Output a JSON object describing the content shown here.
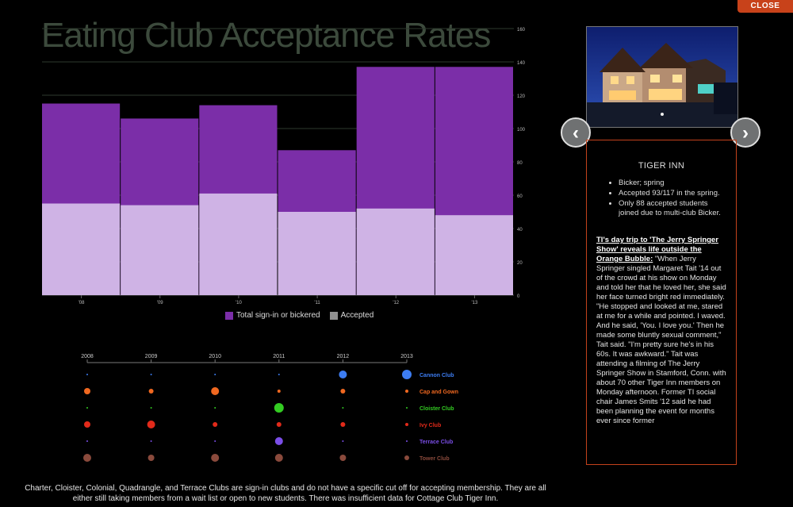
{
  "close_label": "CLOSE",
  "title": "Eating Club Acceptance Rates",
  "legend": [
    {
      "label": "Total sign-in or bickered",
      "color": "#7b2ea8"
    },
    {
      "label": "Accepted",
      "color": "#909090"
    }
  ],
  "chart_data": [
    {
      "type": "bar",
      "title": "Eating Club Acceptance Rates",
      "categories": [
        "'08",
        "'09",
        "'10",
        "'11",
        "'12",
        "'13"
      ],
      "series": [
        {
          "name": "Total sign-in or bickered",
          "values": [
            115,
            106,
            114,
            87,
            137,
            137
          ],
          "color": "#7b2ea8"
        },
        {
          "name": "Accepted",
          "values": [
            55,
            54,
            61,
            50,
            52,
            48
          ],
          "color": "#cfb3e5"
        }
      ],
      "yticks": [
        0,
        20,
        40,
        60,
        80,
        100,
        120,
        140,
        160
      ],
      "ylim": [
        0,
        160
      ],
      "grid": true,
      "legend_position": "bottom"
    },
    {
      "type": "scatter",
      "x_labels": [
        "2008",
        "2009",
        "2010",
        "2011",
        "2012",
        "2013"
      ],
      "clubs": [
        {
          "name": "Cannon Club",
          "color": "#3d7df2",
          "sizes": [
            1,
            1,
            1,
            1,
            5,
            6
          ]
        },
        {
          "name": "Cap and Gown",
          "color": "#f06820",
          "sizes": [
            4,
            3,
            5,
            2,
            3,
            2
          ]
        },
        {
          "name": "Cloister Club",
          "color": "#33cc22",
          "sizes": [
            1,
            1,
            1,
            6,
            1,
            1
          ]
        },
        {
          "name": "Ivy Club",
          "color": "#e22a1a",
          "sizes": [
            4,
            5,
            3,
            3,
            3,
            2
          ]
        },
        {
          "name": "Terrace Club",
          "color": "#7b4ee8",
          "sizes": [
            1,
            1,
            1,
            5,
            1,
            1
          ]
        },
        {
          "name": "Tower Club",
          "color": "#8a4a3c",
          "sizes": [
            5,
            4,
            5,
            5,
            4,
            3
          ]
        }
      ]
    }
  ],
  "footnote": "Charter, Cloister, Colonial, Quadrangle, and Terrace Clubs are sign-in clubs and do not have a specific cut off for accepting membership. They are all either still taking members from a wait list or open to new students. There was insufficient data for Cottage Club Tiger Inn.",
  "panel": {
    "title": "TIGER INN",
    "bullets": [
      "Bicker; spring",
      "Accepted 93/117 in the spring.",
      "Only 88 accepted students joined due to multi-club Bicker."
    ],
    "headline": "TI's day trip to 'The Jerry Springer Show' reveals life outside the Orange Bubble:",
    "body": " \"When Jerry Springer singled Margaret Tait '14 out of the crowd at his show on Monday and told her that he loved her, she said her face turned bright red immediately. \"He stopped and looked at me, stared at me for a while and pointed. I waved. And he said, 'You. I love you.' Then he made some bluntly sexual comment,\" Tait said. \"I'm pretty sure he's in his 60s. It was awkward.\" Tait was attending a filming of The Jerry Springer Show in Stamford, Conn. with about 70 other Tiger Inn members on Monday afternoon. Former TI social chair James Smits '12 said he had been planning the event for months ever since former"
  },
  "nav": {
    "prev_icon": "chevron-left-icon",
    "next_icon": "chevron-right-icon"
  }
}
